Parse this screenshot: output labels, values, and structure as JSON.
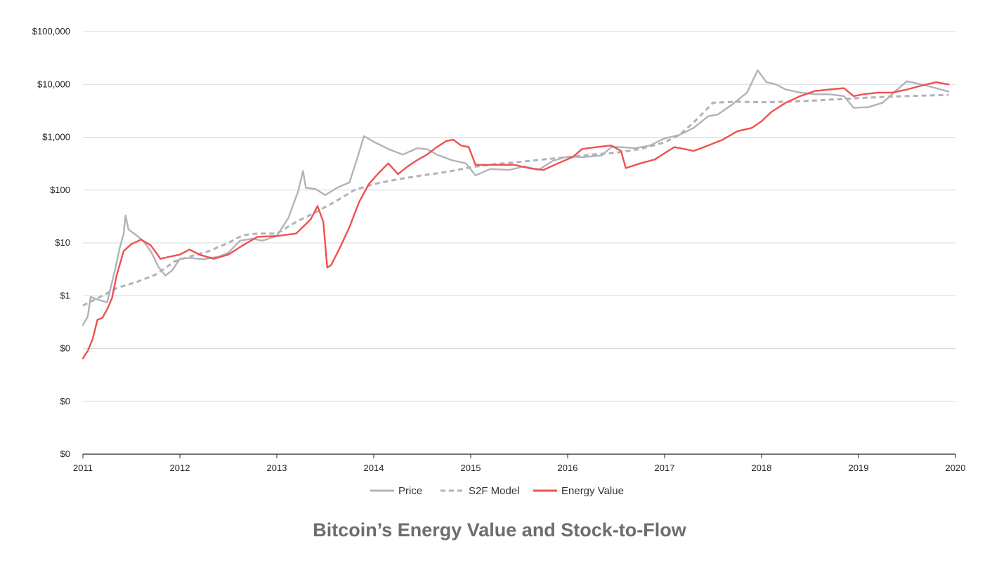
{
  "chart_data": {
    "type": "line",
    "title": "Bitcoin’s Energy Value and Stock-to-Flow",
    "xlabel": "",
    "ylabel": "",
    "y_scale": "log",
    "xlim": [
      2011,
      2020
    ],
    "ylim_labels_count": 9,
    "y_tick_labels": [
      "$100,000",
      "$10,000",
      "$1,000",
      "$100",
      "$10",
      "$1",
      "$0",
      "$0",
      "$0"
    ],
    "x_tick_labels": [
      "2011",
      "2012",
      "2013",
      "2014",
      "2015",
      "2016",
      "2017",
      "2018",
      "2019",
      "2020"
    ],
    "grid": "horizontal",
    "legend_position": "bottom",
    "series": [
      {
        "name": "Price",
        "color": "#b1b3b9",
        "style": "solid",
        "points": [
          [
            2011.0,
            0.28
          ],
          [
            2011.05,
            0.4
          ],
          [
            2011.08,
            0.95
          ],
          [
            2011.15,
            0.85
          ],
          [
            2011.25,
            0.75
          ],
          [
            2011.33,
            3.0
          ],
          [
            2011.38,
            8.0
          ],
          [
            2011.42,
            15.0
          ],
          [
            2011.44,
            33.0
          ],
          [
            2011.47,
            18.0
          ],
          [
            2011.55,
            14.0
          ],
          [
            2011.62,
            11.0
          ],
          [
            2011.7,
            7.0
          ],
          [
            2011.78,
            3.5
          ],
          [
            2011.85,
            2.4
          ],
          [
            2011.92,
            3.0
          ],
          [
            2012.0,
            5.0
          ],
          [
            2012.1,
            5.2
          ],
          [
            2012.25,
            4.9
          ],
          [
            2012.4,
            5.5
          ],
          [
            2012.5,
            6.5
          ],
          [
            2012.62,
            11.0
          ],
          [
            2012.75,
            12.0
          ],
          [
            2012.85,
            11.0
          ],
          [
            2013.0,
            13.5
          ],
          [
            2013.12,
            30.0
          ],
          [
            2013.22,
            95.0
          ],
          [
            2013.27,
            230.0
          ],
          [
            2013.3,
            110.0
          ],
          [
            2013.4,
            105.0
          ],
          [
            2013.5,
            80.0
          ],
          [
            2013.62,
            110.0
          ],
          [
            2013.75,
            140.0
          ],
          [
            2013.83,
            400.0
          ],
          [
            2013.9,
            1050.0
          ],
          [
            2014.0,
            820.0
          ],
          [
            2014.15,
            600.0
          ],
          [
            2014.3,
            470.0
          ],
          [
            2014.45,
            620.0
          ],
          [
            2014.55,
            590.0
          ],
          [
            2014.65,
            470.0
          ],
          [
            2014.8,
            370.0
          ],
          [
            2014.95,
            320.0
          ],
          [
            2015.05,
            190.0
          ],
          [
            2015.2,
            250.0
          ],
          [
            2015.4,
            240.0
          ],
          [
            2015.55,
            280.0
          ],
          [
            2015.7,
            240.0
          ],
          [
            2015.85,
            360.0
          ],
          [
            2016.0,
            430.0
          ],
          [
            2016.15,
            420.0
          ],
          [
            2016.35,
            450.0
          ],
          [
            2016.45,
            650.0
          ],
          [
            2016.55,
            650.0
          ],
          [
            2016.7,
            620.0
          ],
          [
            2016.85,
            700.0
          ],
          [
            2017.0,
            950.0
          ],
          [
            2017.15,
            1100.0
          ],
          [
            2017.3,
            1500.0
          ],
          [
            2017.45,
            2500.0
          ],
          [
            2017.55,
            2700.0
          ],
          [
            2017.7,
            4200.0
          ],
          [
            2017.85,
            7000.0
          ],
          [
            2017.96,
            18500.0
          ],
          [
            2018.05,
            11000.0
          ],
          [
            2018.15,
            10000.0
          ],
          [
            2018.25,
            8000.0
          ],
          [
            2018.4,
            7000.0
          ],
          [
            2018.55,
            6500.0
          ],
          [
            2018.7,
            6500.0
          ],
          [
            2018.85,
            6000.0
          ],
          [
            2018.95,
            3600.0
          ],
          [
            2019.1,
            3700.0
          ],
          [
            2019.25,
            4500.0
          ],
          [
            2019.4,
            8000.0
          ],
          [
            2019.5,
            11500.0
          ],
          [
            2019.6,
            10500.0
          ],
          [
            2019.7,
            9500.0
          ],
          [
            2019.8,
            8500.0
          ],
          [
            2019.93,
            7300.0
          ]
        ]
      },
      {
        "name": "S2F Model",
        "color": "#b1b3b9",
        "style": "dashed",
        "points": [
          [
            2011.0,
            0.65
          ],
          [
            2011.2,
            1.0
          ],
          [
            2011.35,
            1.4
          ],
          [
            2011.55,
            1.8
          ],
          [
            2011.75,
            2.5
          ],
          [
            2011.95,
            4.5
          ],
          [
            2012.1,
            5.5
          ],
          [
            2012.3,
            7.0
          ],
          [
            2012.5,
            10.0
          ],
          [
            2012.65,
            14.0
          ],
          [
            2012.8,
            15.0
          ],
          [
            2013.0,
            15.0
          ],
          [
            2013.2,
            25.0
          ],
          [
            2013.4,
            38.0
          ],
          [
            2013.6,
            60.0
          ],
          [
            2013.8,
            100.0
          ],
          [
            2014.0,
            130.0
          ],
          [
            2014.25,
            160.0
          ],
          [
            2014.5,
            190.0
          ],
          [
            2014.75,
            220.0
          ],
          [
            2015.0,
            270.0
          ],
          [
            2015.25,
            310.0
          ],
          [
            2015.5,
            340.0
          ],
          [
            2015.75,
            380.0
          ],
          [
            2016.0,
            420.0
          ],
          [
            2016.25,
            470.0
          ],
          [
            2016.5,
            510.0
          ],
          [
            2016.75,
            600.0
          ],
          [
            2017.0,
            800.0
          ],
          [
            2017.15,
            1100.0
          ],
          [
            2017.3,
            1900.0
          ],
          [
            2017.5,
            4500.0
          ],
          [
            2017.75,
            4700.0
          ],
          [
            2018.0,
            4600.0
          ],
          [
            2018.25,
            4700.0
          ],
          [
            2018.5,
            4900.0
          ],
          [
            2018.75,
            5200.0
          ],
          [
            2019.0,
            5500.0
          ],
          [
            2019.25,
            5800.0
          ],
          [
            2019.5,
            6000.0
          ],
          [
            2019.75,
            6200.0
          ],
          [
            2019.93,
            6300.0
          ]
        ]
      },
      {
        "name": "Energy Value",
        "color": "#f05050",
        "style": "solid",
        "points": [
          [
            2011.0,
            0.065
          ],
          [
            2011.05,
            0.09
          ],
          [
            2011.1,
            0.15
          ],
          [
            2011.15,
            0.35
          ],
          [
            2011.2,
            0.38
          ],
          [
            2011.25,
            0.55
          ],
          [
            2011.3,
            0.9
          ],
          [
            2011.35,
            2.5
          ],
          [
            2011.42,
            7.0
          ],
          [
            2011.5,
            9.5
          ],
          [
            2011.6,
            11.5
          ],
          [
            2011.7,
            9.0
          ],
          [
            2011.8,
            5.0
          ],
          [
            2011.9,
            5.5
          ],
          [
            2012.0,
            6.0
          ],
          [
            2012.1,
            7.5
          ],
          [
            2012.2,
            6.0
          ],
          [
            2012.35,
            5.0
          ],
          [
            2012.5,
            6.0
          ],
          [
            2012.65,
            9.0
          ],
          [
            2012.8,
            13.0
          ],
          [
            2013.0,
            13.5
          ],
          [
            2013.2,
            15.0
          ],
          [
            2013.35,
            28.0
          ],
          [
            2013.42,
            50.0
          ],
          [
            2013.48,
            25.0
          ],
          [
            2013.52,
            3.4
          ],
          [
            2013.56,
            3.8
          ],
          [
            2013.65,
            8.0
          ],
          [
            2013.75,
            20.0
          ],
          [
            2013.85,
            60.0
          ],
          [
            2013.95,
            130.0
          ],
          [
            2014.05,
            210.0
          ],
          [
            2014.15,
            320.0
          ],
          [
            2014.25,
            200.0
          ],
          [
            2014.35,
            280.0
          ],
          [
            2014.45,
            370.0
          ],
          [
            2014.55,
            470.0
          ],
          [
            2014.65,
            650.0
          ],
          [
            2014.75,
            850.0
          ],
          [
            2014.82,
            900.0
          ],
          [
            2014.9,
            700.0
          ],
          [
            2014.98,
            650.0
          ],
          [
            2015.05,
            300.0
          ],
          [
            2015.25,
            300.0
          ],
          [
            2015.45,
            300.0
          ],
          [
            2015.6,
            260.0
          ],
          [
            2015.75,
            240.0
          ],
          [
            2015.9,
            320.0
          ],
          [
            2016.05,
            420.0
          ],
          [
            2016.15,
            600.0
          ],
          [
            2016.3,
            650.0
          ],
          [
            2016.45,
            700.0
          ],
          [
            2016.55,
            550.0
          ],
          [
            2016.6,
            260.0
          ],
          [
            2016.75,
            320.0
          ],
          [
            2016.9,
            380.0
          ],
          [
            2017.0,
            500.0
          ],
          [
            2017.1,
            650.0
          ],
          [
            2017.2,
            600.0
          ],
          [
            2017.3,
            550.0
          ],
          [
            2017.45,
            700.0
          ],
          [
            2017.6,
            900.0
          ],
          [
            2017.75,
            1300.0
          ],
          [
            2017.9,
            1500.0
          ],
          [
            2018.0,
            2000.0
          ],
          [
            2018.1,
            3000.0
          ],
          [
            2018.25,
            4500.0
          ],
          [
            2018.4,
            6000.0
          ],
          [
            2018.55,
            7500.0
          ],
          [
            2018.7,
            8000.0
          ],
          [
            2018.85,
            8500.0
          ],
          [
            2018.95,
            6000.0
          ],
          [
            2019.05,
            6500.0
          ],
          [
            2019.2,
            7000.0
          ],
          [
            2019.35,
            7000.0
          ],
          [
            2019.5,
            8000.0
          ],
          [
            2019.65,
            9500.0
          ],
          [
            2019.8,
            11000.0
          ],
          [
            2019.93,
            10000.0
          ]
        ]
      }
    ]
  }
}
